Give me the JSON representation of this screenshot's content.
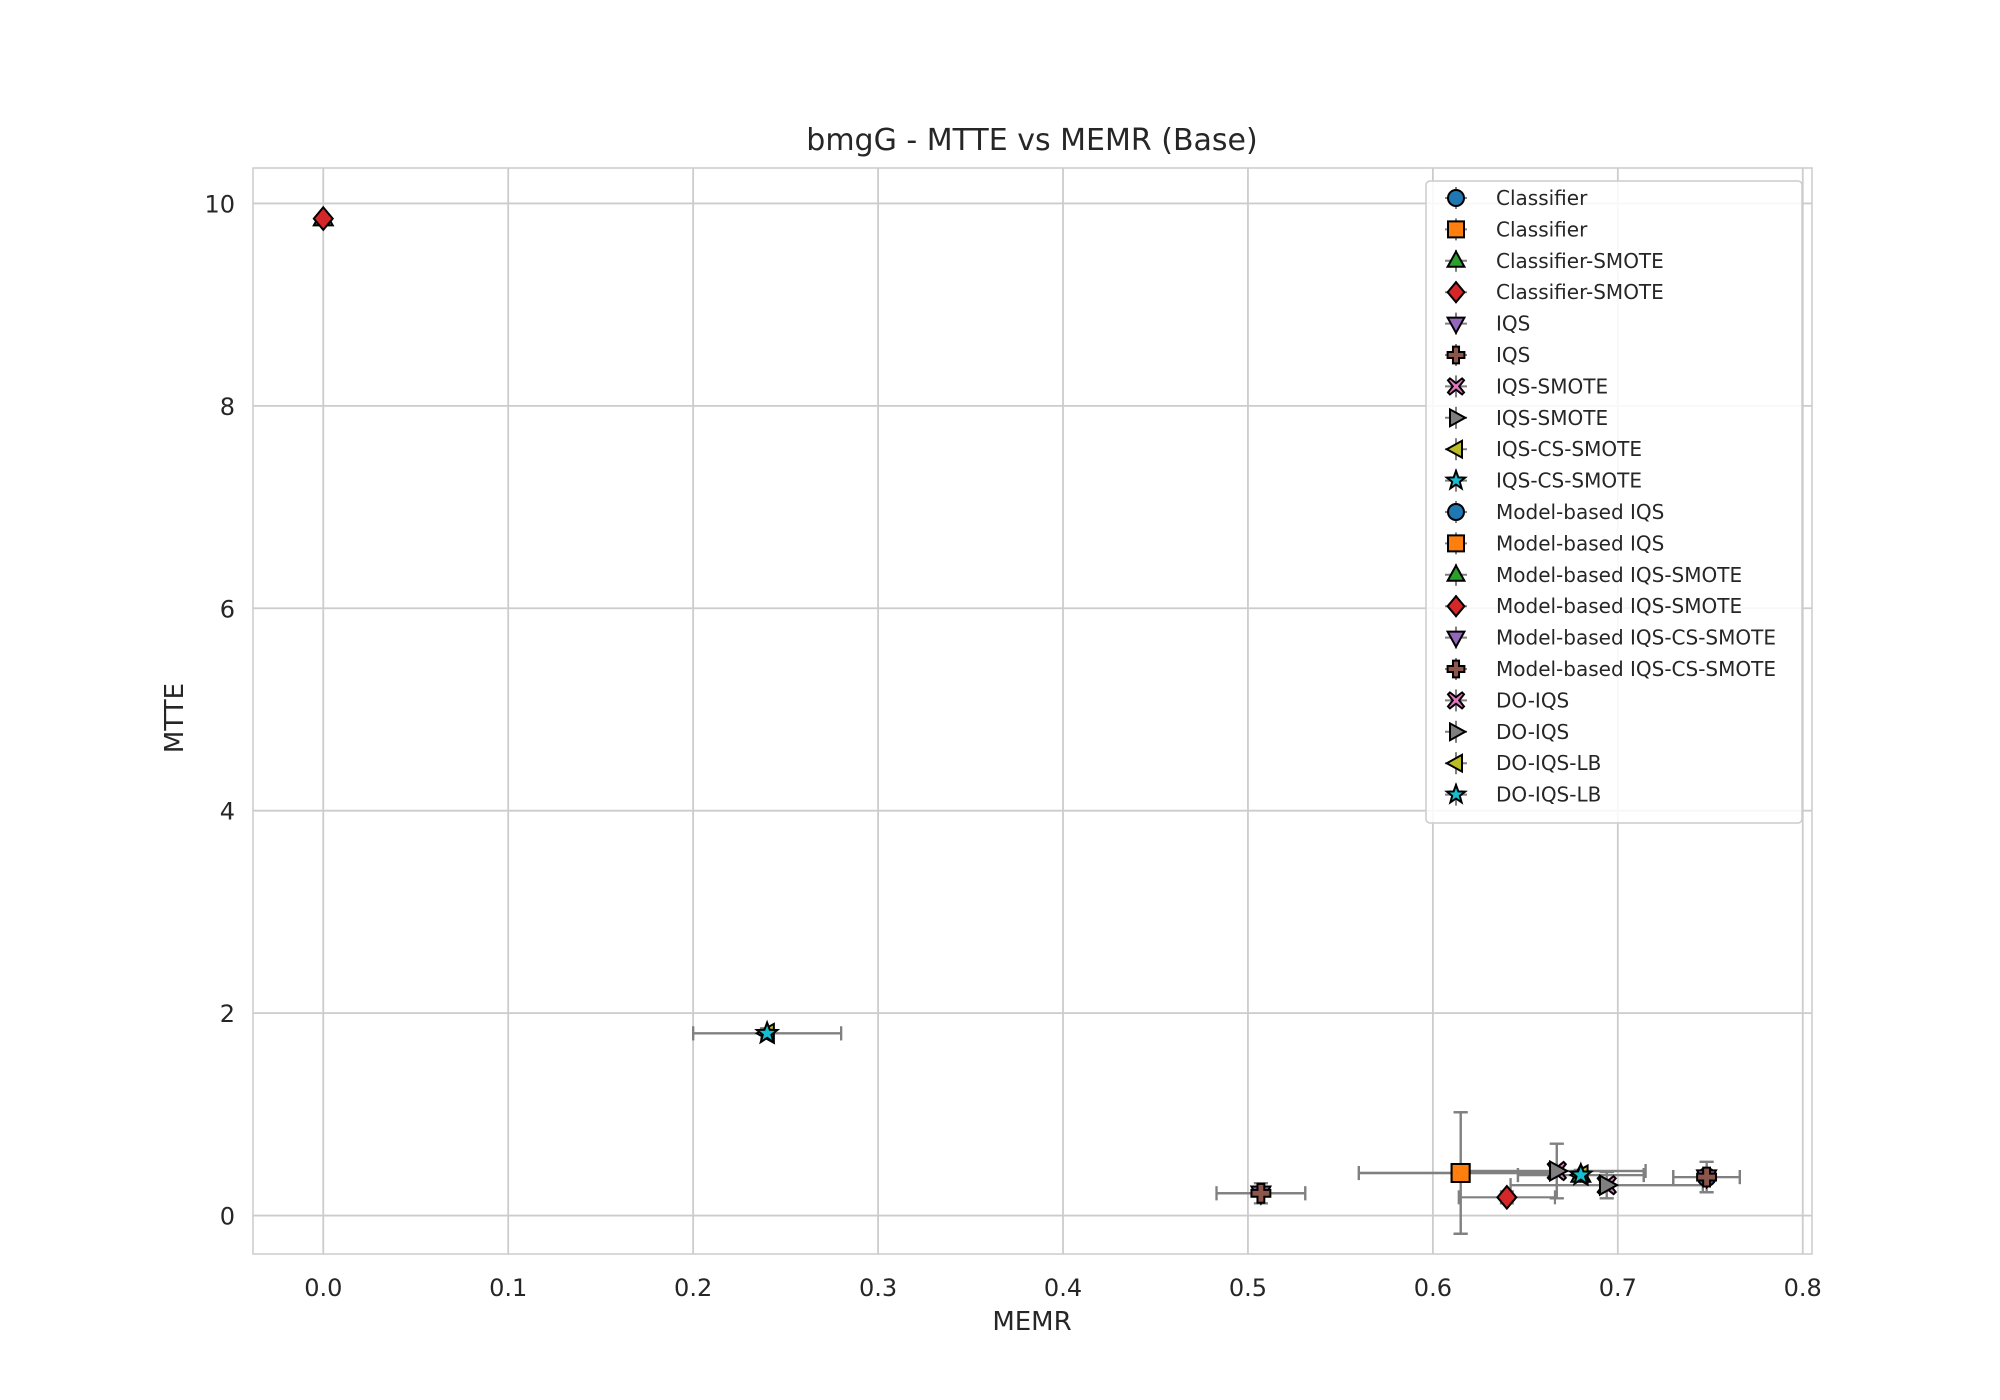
{
  "chart_data": {
    "type": "scatter",
    "title": "bmgG - MTTE vs MEMR (Base)",
    "xlabel": "MEMR",
    "ylabel": "MTTE",
    "xlim": [
      -0.038,
      0.805
    ],
    "ylim": [
      -0.38,
      10.35
    ],
    "xticks": [
      "0.0",
      "0.1",
      "0.2",
      "0.3",
      "0.4",
      "0.5",
      "0.6",
      "0.7",
      "0.8"
    ],
    "xtick_values": [
      0,
      0.1,
      0.2,
      0.3,
      0.4,
      0.5,
      0.6,
      0.7,
      0.8
    ],
    "yticks": [
      "0",
      "2",
      "4",
      "6",
      "8",
      "10"
    ],
    "ytick_values": [
      0,
      2,
      4,
      6,
      8,
      10
    ],
    "grid": true,
    "legend_position": "top-right",
    "error_bar_color": "#808080",
    "series": [
      {
        "name": "Classifier",
        "marker": "circle",
        "color": "#1f77b4",
        "x": 0.615,
        "y": 0.42,
        "xerr": 0.055,
        "yerr": 0.6
      },
      {
        "name": "Classifier",
        "marker": "square",
        "color": "#ff7f0e",
        "x": 0.615,
        "y": 0.42,
        "xerr": 0.055,
        "yerr": 0.6
      },
      {
        "name": "Classifier-SMOTE",
        "marker": "triangle-up",
        "color": "#2ca02c",
        "x": 0.0,
        "y": 9.85,
        "xerr": 0,
        "yerr": 0
      },
      {
        "name": "Classifier-SMOTE",
        "marker": "diamond",
        "color": "#d62728",
        "x": 0.0,
        "y": 9.85,
        "xerr": 0,
        "yerr": 0
      },
      {
        "name": "IQS",
        "marker": "triangle-down",
        "color": "#9467bd",
        "x": 0.507,
        "y": 0.22,
        "xerr": 0.024,
        "yerr": 0.1
      },
      {
        "name": "IQS",
        "marker": "plus",
        "color": "#8c564b",
        "x": 0.507,
        "y": 0.22,
        "xerr": 0.024,
        "yerr": 0.1
      },
      {
        "name": "IQS-SMOTE",
        "marker": "x",
        "color": "#e377c2",
        "x": 0.667,
        "y": 0.44,
        "xerr": 0.048,
        "yerr": 0.27
      },
      {
        "name": "IQS-SMOTE",
        "marker": "triangle-right",
        "color": "#7f7f7f",
        "x": 0.667,
        "y": 0.44,
        "xerr": 0.048,
        "yerr": 0.27
      },
      {
        "name": "IQS-CS-SMOTE",
        "marker": "triangle-left",
        "color": "#bcbd22",
        "x": 0.24,
        "y": 1.8,
        "xerr": 0.04,
        "yerr": 0.05
      },
      {
        "name": "IQS-CS-SMOTE",
        "marker": "star",
        "color": "#17becf",
        "x": 0.24,
        "y": 1.8,
        "xerr": 0.04,
        "yerr": 0.05
      },
      {
        "name": "Model-based IQS",
        "marker": "circle",
        "color": "#1f77b4",
        "x": 0.748,
        "y": 0.38,
        "xerr": 0.018,
        "yerr": 0.15
      },
      {
        "name": "Model-based IQS",
        "marker": "square",
        "color": "#ff7f0e",
        "x": 0.615,
        "y": 0.42,
        "xerr": 0.055,
        "yerr": 0.6
      },
      {
        "name": "Model-based IQS-SMOTE",
        "marker": "triangle-up",
        "color": "#2ca02c",
        "x": 0.68,
        "y": 0.4,
        "xerr": 0.034,
        "yerr": 0.05
      },
      {
        "name": "Model-based IQS-SMOTE",
        "marker": "diamond",
        "color": "#d62728",
        "x": 0.64,
        "y": 0.18,
        "xerr": 0.026,
        "yerr": 0.06
      },
      {
        "name": "Model-based IQS-CS-SMOTE",
        "marker": "triangle-down",
        "color": "#9467bd",
        "x": 0.748,
        "y": 0.38,
        "xerr": 0.018,
        "yerr": 0.15
      },
      {
        "name": "Model-based IQS-CS-SMOTE",
        "marker": "plus",
        "color": "#8c564b",
        "x": 0.748,
        "y": 0.38,
        "xerr": 0.018,
        "yerr": 0.15
      },
      {
        "name": "DO-IQS",
        "marker": "x",
        "color": "#e377c2",
        "x": 0.694,
        "y": 0.3,
        "xerr": 0.052,
        "yerr": 0.13
      },
      {
        "name": "DO-IQS",
        "marker": "triangle-right",
        "color": "#7f7f7f",
        "x": 0.694,
        "y": 0.3,
        "xerr": 0.052,
        "yerr": 0.13
      },
      {
        "name": "DO-IQS-LB",
        "marker": "triangle-left",
        "color": "#bcbd22",
        "x": 0.68,
        "y": 0.4,
        "xerr": 0.034,
        "yerr": 0.05
      },
      {
        "name": "DO-IQS-LB",
        "marker": "star",
        "color": "#17becf",
        "x": 0.68,
        "y": 0.4,
        "xerr": 0.034,
        "yerr": 0.05
      }
    ]
  }
}
